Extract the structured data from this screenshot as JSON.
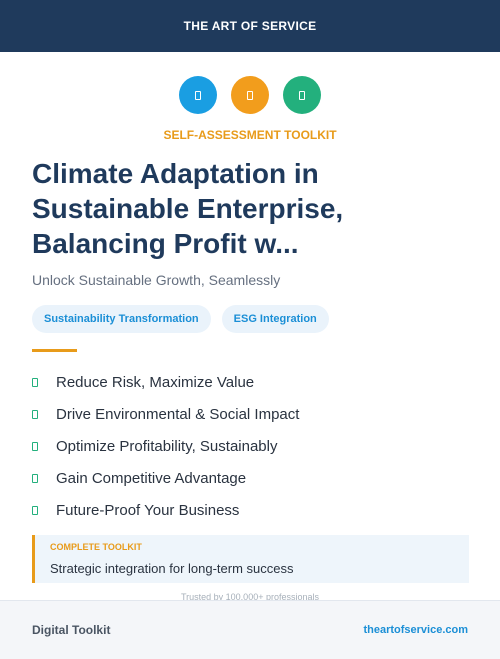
{
  "header": {
    "brand": "THE ART OF SERVICE"
  },
  "icons": [
    {
      "name": "blue-square-icon",
      "color": "#1a9ee2"
    },
    {
      "name": "orange-square-icon",
      "color": "#f29d1c"
    },
    {
      "name": "green-square-icon",
      "color": "#23b07d"
    }
  ],
  "kicker": "SELF-ASSESSMENT TOOLKIT",
  "title": "Climate Adaptation in Sustainable Enterprise, Balancing Profit w...",
  "subtitle": "Unlock Sustainable Growth, Seamlessly",
  "tags": [
    "Sustainability Transformation",
    "ESG Integration"
  ],
  "benefits": [
    "Reduce Risk, Maximize Value",
    "Drive Environmental & Social Impact",
    "Optimize Profitability, Sustainably",
    "Gain Competitive Advantage",
    "Future-Proof Your Business"
  ],
  "callout": {
    "label": "COMPLETE TOOLKIT",
    "text": "Strategic integration for long-term success"
  },
  "trusted": "Trusted by 100,000+ professionals",
  "footer": {
    "left": "Digital Toolkit",
    "right": "theartofservice.com"
  }
}
